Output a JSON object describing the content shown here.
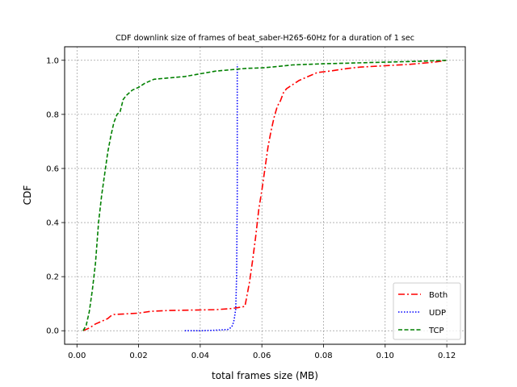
{
  "chart_data": {
    "type": "line",
    "title": "CDF downlink size of frames of beat_saber-H265-60Hz for a duration of 1 sec",
    "xlabel": "total frames size (MB)",
    "ylabel": "CDF",
    "xlim": [
      -0.004,
      0.126
    ],
    "ylim": [
      -0.05,
      1.05
    ],
    "xticks": [
      0.0,
      0.02,
      0.04,
      0.06,
      0.08,
      0.1,
      0.12
    ],
    "xtick_labels": [
      "0.00",
      "0.02",
      "0.04",
      "0.06",
      "0.08",
      "0.10",
      "0.12"
    ],
    "yticks": [
      0.0,
      0.2,
      0.4,
      0.6,
      0.8,
      1.0
    ],
    "ytick_labels": [
      "0.0",
      "0.2",
      "0.4",
      "0.6",
      "0.8",
      "1.0"
    ],
    "grid": true,
    "legend_position": "lower-right",
    "series": [
      {
        "name": "Both",
        "color": "#ff0000",
        "dash": "dashdot",
        "x": [
          0.002,
          0.004,
          0.006,
          0.008,
          0.01,
          0.011,
          0.012,
          0.02,
          0.024,
          0.03,
          0.04,
          0.045,
          0.05,
          0.052,
          0.0545,
          0.055,
          0.056,
          0.057,
          0.058,
          0.059,
          0.06,
          0.061,
          0.062,
          0.063,
          0.064,
          0.065,
          0.066,
          0.067,
          0.068,
          0.07,
          0.072,
          0.075,
          0.078,
          0.082,
          0.088,
          0.092,
          0.1,
          0.108,
          0.113,
          0.116,
          0.12
        ],
        "y": [
          0.0,
          0.01,
          0.025,
          0.035,
          0.045,
          0.055,
          0.06,
          0.065,
          0.072,
          0.075,
          0.077,
          0.078,
          0.082,
          0.085,
          0.09,
          0.12,
          0.18,
          0.26,
          0.35,
          0.45,
          0.52,
          0.6,
          0.68,
          0.74,
          0.79,
          0.83,
          0.85,
          0.88,
          0.895,
          0.91,
          0.925,
          0.94,
          0.955,
          0.96,
          0.97,
          0.975,
          0.98,
          0.985,
          0.99,
          0.993,
          1.0
        ]
      },
      {
        "name": "UDP",
        "color": "#0000ff",
        "dash": "dotted",
        "x": [
          0.035,
          0.04,
          0.045,
          0.049,
          0.05,
          0.0505,
          0.051,
          0.0515,
          0.0518,
          0.052,
          0.052,
          0.052
        ],
        "y": [
          0.0,
          0.0,
          0.002,
          0.005,
          0.012,
          0.02,
          0.04,
          0.08,
          0.2,
          0.5,
          0.85,
          0.985
        ]
      },
      {
        "name": "TCP",
        "color": "#008000",
        "dash": "dashed",
        "x": [
          0.002,
          0.003,
          0.004,
          0.005,
          0.006,
          0.007,
          0.008,
          0.009,
          0.01,
          0.011,
          0.012,
          0.013,
          0.014,
          0.015,
          0.016,
          0.018,
          0.02,
          0.022,
          0.025,
          0.03,
          0.035,
          0.04,
          0.045,
          0.05,
          0.055,
          0.06,
          0.065,
          0.07,
          0.08,
          0.09,
          0.1,
          0.11,
          0.12
        ],
        "y": [
          0.0,
          0.02,
          0.07,
          0.15,
          0.25,
          0.4,
          0.5,
          0.58,
          0.66,
          0.72,
          0.77,
          0.8,
          0.81,
          0.855,
          0.87,
          0.89,
          0.9,
          0.915,
          0.93,
          0.935,
          0.94,
          0.95,
          0.96,
          0.965,
          0.97,
          0.972,
          0.977,
          0.983,
          0.987,
          0.99,
          0.993,
          0.996,
          1.0
        ]
      }
    ]
  }
}
